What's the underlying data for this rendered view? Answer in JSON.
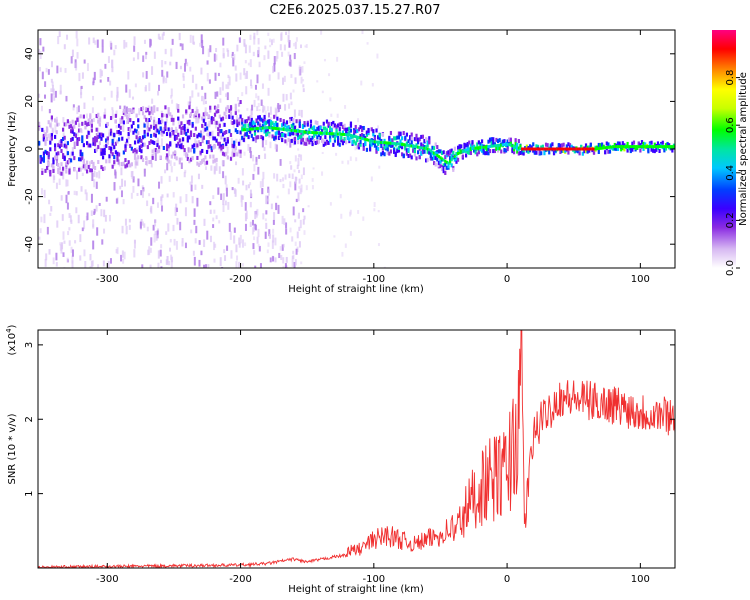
{
  "title": "C2E6.2025.037.15.27.R07",
  "chart_data": [
    {
      "type": "heatmap",
      "xlabel": "Height of straight line (km)",
      "ylabel": "Frequency (Hz)",
      "xlim": [
        -352,
        126
      ],
      "ylim": [
        -50,
        50
      ],
      "xticks": [
        -300,
        -200,
        -100,
        0,
        100
      ],
      "yticks": [
        -40,
        -20,
        0,
        20,
        40
      ],
      "colorbar": {
        "label": "Normalized spectral amplitude",
        "range": [
          0.0,
          1.0
        ],
        "ticks": [
          0.0,
          0.2,
          0.4,
          0.6,
          0.8
        ],
        "tick_labels": [
          "0.0",
          "0.2",
          "0.4",
          "0.6",
          "0.8"
        ],
        "colors": [
          "#ffffff",
          "#d7b8f2",
          "#8a2be2",
          "#3a00ff",
          "#0040ff",
          "#00c8ff",
          "#00e6a0",
          "#00ff00",
          "#c8ff00",
          "#ffff00",
          "#ff8c00",
          "#ff0000",
          "#ff0080"
        ]
      },
      "ridge": {
        "x": [
          -350,
          -300,
          -260,
          -230,
          -200,
          -180,
          -150,
          -120,
          -100,
          -80,
          -60,
          -45,
          -38,
          -30,
          -15,
          0,
          10,
          30,
          50,
          65,
          80,
          100,
          125
        ],
        "y": [
          1,
          3,
          7,
          5,
          8,
          9,
          7,
          6,
          3,
          2,
          0,
          -6,
          -2,
          0,
          1,
          2,
          0,
          0,
          0,
          0,
          1,
          1,
          1
        ]
      }
    },
    {
      "type": "line",
      "xlabel": "Height of straight line (km)",
      "ylabel": "SNR (10 * v/v)",
      "y_multiplier": "(x10",
      "y_multiplier_exp": "4",
      "xlim": [
        -352,
        126
      ],
      "ylim": [
        0,
        3.2
      ],
      "xticks": [
        -300,
        -200,
        -100,
        0,
        100
      ],
      "yticks": [
        1,
        2,
        3
      ],
      "series": [
        {
          "color": "#f03030",
          "x": [
            -350,
            -300,
            -250,
            -200,
            -180,
            -160,
            -150,
            -130,
            -110,
            -100,
            -90,
            -80,
            -70,
            -60,
            -50,
            -40,
            -30,
            -20,
            -10,
            0,
            5,
            10,
            11,
            13,
            20,
            30,
            40,
            60,
            80,
            100,
            125
          ],
          "y": [
            0.01,
            0.02,
            0.03,
            0.04,
            0.06,
            0.12,
            0.08,
            0.15,
            0.2,
            0.3,
            0.35,
            0.3,
            0.25,
            0.3,
            0.35,
            0.45,
            0.8,
            1.1,
            1.2,
            1.3,
            1.7,
            2.0,
            3.1,
            0.6,
            1.8,
            2.1,
            2.3,
            2.25,
            2.2,
            2.1,
            2.05
          ]
        }
      ]
    }
  ]
}
